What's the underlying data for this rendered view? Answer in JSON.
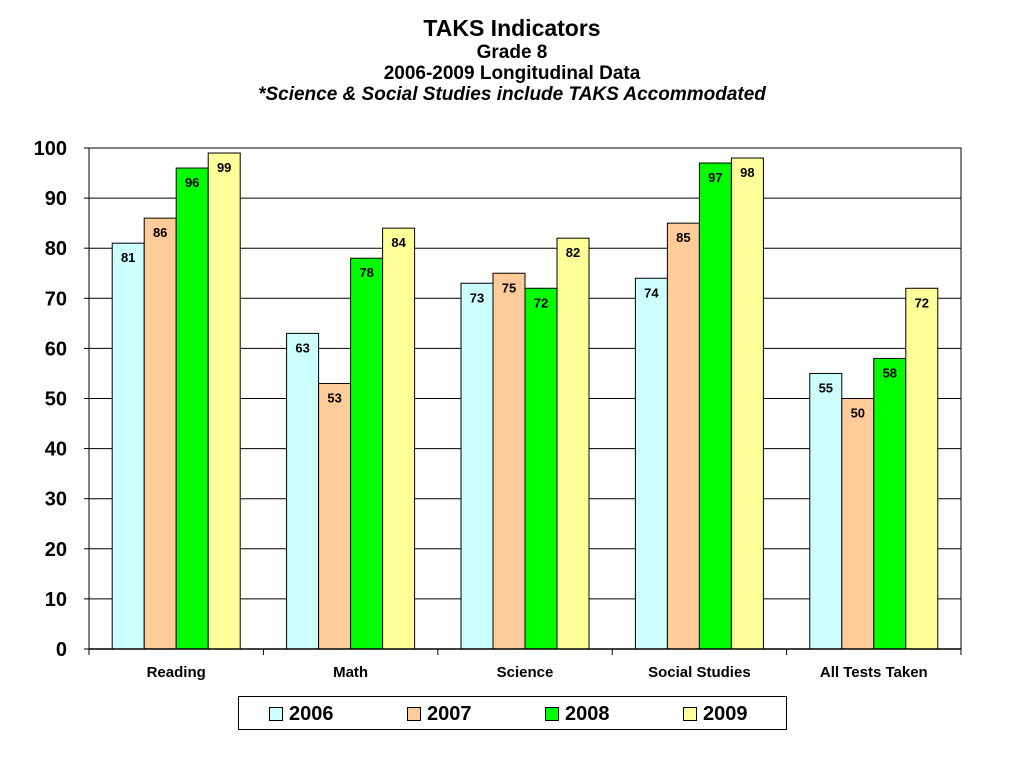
{
  "chart_data": {
    "type": "bar",
    "title": "TAKS Indicators",
    "subtitle_lines": [
      "Grade 8",
      "2006-2009 Longitudinal Data",
      "*Science & Social Studies include TAKS Accommodated"
    ],
    "xlabel": "",
    "ylabel": "",
    "categories": [
      "Reading",
      "Math",
      "Science",
      "Social Studies",
      "All Tests Taken"
    ],
    "series": [
      {
        "name": "2006",
        "color": "#CCFFFF",
        "values": [
          81,
          63,
          73,
          74,
          55
        ]
      },
      {
        "name": "2007",
        "color": "#FFCC99",
        "values": [
          86,
          53,
          75,
          85,
          50
        ]
      },
      {
        "name": "2008",
        "color": "#00FF00",
        "values": [
          96,
          78,
          72,
          97,
          58
        ]
      },
      {
        "name": "2009",
        "color": "#FFFF99",
        "values": [
          99,
          84,
          82,
          98,
          72
        ]
      }
    ],
    "ylim": [
      0,
      100
    ],
    "yticks": [
      0,
      10,
      20,
      30,
      40,
      50,
      60,
      70,
      80,
      90,
      100
    ],
    "grid": true,
    "data_labels": true,
    "legend_position": "bottom"
  }
}
